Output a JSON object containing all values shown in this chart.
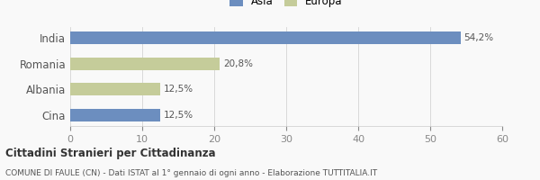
{
  "categories": [
    "India",
    "Romania",
    "Albania",
    "Cina"
  ],
  "values": [
    54.2,
    20.8,
    12.5,
    12.5
  ],
  "labels": [
    "54,2%",
    "20,8%",
    "12,5%",
    "12,5%"
  ],
  "colors": [
    "#6c8ebf",
    "#c5cc9a",
    "#c5cc9a",
    "#6c8ebf"
  ],
  "legend": [
    {
      "label": "Asia",
      "color": "#6c8ebf"
    },
    {
      "label": "Europa",
      "color": "#c5cc9a"
    }
  ],
  "xlim": [
    0,
    60
  ],
  "xticks": [
    0,
    10,
    20,
    30,
    40,
    50,
    60
  ],
  "title": "Cittadini Stranieri per Cittadinanza",
  "subtitle": "COMUNE DI FAULE (CN) - Dati ISTAT al 1° gennaio di ogni anno - Elaborazione TUTTITALIA.IT",
  "background_color": "#f9f9f9",
  "bar_height": 0.5
}
